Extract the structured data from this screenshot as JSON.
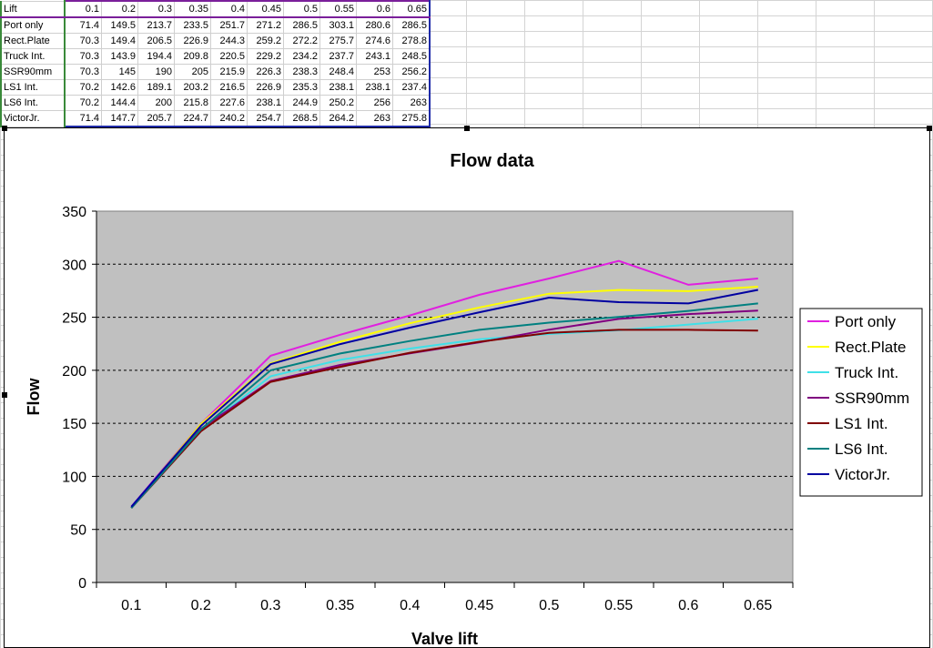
{
  "table": {
    "header_label": "Lift",
    "lifts": [
      "0.1",
      "0.2",
      "0.3",
      "0.35",
      "0.4",
      "0.45",
      "0.5",
      "0.55",
      "0.6",
      "0.65"
    ],
    "rows": [
      {
        "name": "Port only",
        "values": [
          "71.4",
          "149.5",
          "213.7",
          "233.5",
          "251.7",
          "271.2",
          "286.5",
          "303.1",
          "280.6",
          "286.5"
        ]
      },
      {
        "name": "Rect.Plate",
        "values": [
          "70.3",
          "149.4",
          "206.5",
          "226.9",
          "244.3",
          "259.2",
          "272.2",
          "275.7",
          "274.6",
          "278.8"
        ]
      },
      {
        "name": "Truck Int.",
        "values": [
          "70.3",
          "143.9",
          "194.4",
          "209.8",
          "220.5",
          "229.2",
          "234.2",
          "237.7",
          "243.1",
          "248.5"
        ]
      },
      {
        "name": "SSR90mm",
        "values": [
          "70.3",
          "145",
          "190",
          "205",
          "215.9",
          "226.3",
          "238.3",
          "248.4",
          "253",
          "256.2"
        ]
      },
      {
        "name": "LS1 Int.",
        "values": [
          "70.2",
          "142.6",
          "189.1",
          "203.2",
          "216.5",
          "226.9",
          "235.3",
          "238.1",
          "238.1",
          "237.4"
        ]
      },
      {
        "name": "LS6 Int.",
        "values": [
          "70.2",
          "144.4",
          "200",
          "215.8",
          "227.6",
          "238.1",
          "244.9",
          "250.2",
          "256",
          "263"
        ]
      },
      {
        "name": "VictorJr.",
        "values": [
          "71.4",
          "147.7",
          "205.7",
          "224.7",
          "240.2",
          "254.7",
          "268.5",
          "264.2",
          "263",
          "275.8"
        ]
      }
    ]
  },
  "chart_data": {
    "type": "line",
    "title": "Flow data",
    "xlabel": "Valve lift",
    "ylabel": "Flow",
    "categories": [
      "0.1",
      "0.2",
      "0.3",
      "0.35",
      "0.4",
      "0.45",
      "0.5",
      "0.55",
      "0.6",
      "0.65"
    ],
    "ylim": [
      0,
      350
    ],
    "yticks": [
      "0",
      "50",
      "100",
      "150",
      "200",
      "250",
      "300",
      "350"
    ],
    "grid": "dashed horizontal",
    "plot_background": "#c0c0c0",
    "legend_position": "right",
    "series": [
      {
        "name": "Port only",
        "color": "#e020e0",
        "values": [
          71.4,
          149.5,
          213.7,
          233.5,
          251.7,
          271.2,
          286.5,
          303.1,
          280.6,
          286.5
        ]
      },
      {
        "name": "Rect.Plate",
        "color": "#ffff00",
        "values": [
          70.3,
          149.4,
          206.5,
          226.9,
          244.3,
          259.2,
          272.2,
          275.7,
          274.6,
          278.8
        ]
      },
      {
        "name": "Truck Int.",
        "color": "#40e0e8",
        "values": [
          70.3,
          143.9,
          194.4,
          209.8,
          220.5,
          229.2,
          234.2,
          237.7,
          243.1,
          248.5
        ]
      },
      {
        "name": "SSR90mm",
        "color": "#800080",
        "values": [
          70.3,
          145,
          190,
          205,
          215.9,
          226.3,
          238.3,
          248.4,
          253,
          256.2
        ]
      },
      {
        "name": "LS1 Int.",
        "color": "#800000",
        "values": [
          70.2,
          142.6,
          189.1,
          203.2,
          216.5,
          226.9,
          235.3,
          238.1,
          238.1,
          237.4
        ]
      },
      {
        "name": "LS6 Int.",
        "color": "#008080",
        "values": [
          70.2,
          144.4,
          200,
          215.8,
          227.6,
          238.1,
          244.9,
          250.2,
          256,
          263
        ]
      },
      {
        "name": "VictorJr.",
        "color": "#0000a0",
        "values": [
          71.4,
          147.7,
          205.7,
          224.7,
          240.2,
          254.7,
          268.5,
          264.2,
          263,
          275.8
        ]
      }
    ]
  }
}
